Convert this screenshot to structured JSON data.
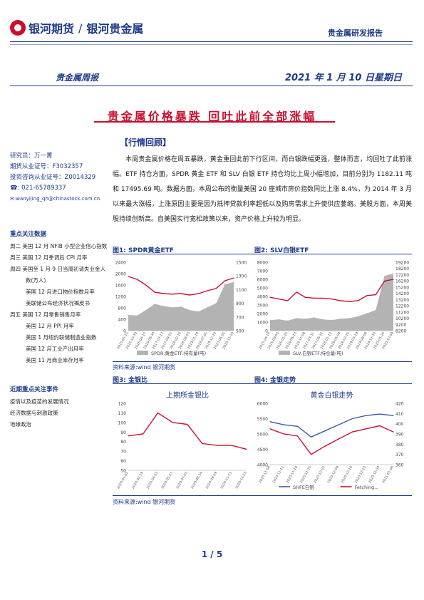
{
  "header": {
    "brand_cn": "银河期货",
    "sub_brand": "银河贵金属",
    "report_type": "贵金属研发报告",
    "weekly_label": "贵金属周报",
    "date": "2021 年 1 月 10 日星期日"
  },
  "title": "贵金属价格暴跌  回吐此前全部涨幅",
  "section_heading": "【行情回顾】",
  "analyst": {
    "researcher": "研究员：万一菁",
    "futures_license": "期货从业证号：F3032357",
    "consult_license": "投资咨询从业证号：Z0014329",
    "phone": "☎: 021-65789337",
    "email": "✉:wanyijing_qh@chinastock.com.cn"
  },
  "focus_data": {
    "title": "重点关注数据",
    "items": [
      "周二  美国 12 月 NFIB 小型企业信心指数",
      "周三  美国 12 月季调后 CPI 月率",
      "周四  美国至 1 月 9 日当周初请失业金人",
      "数(万人)",
      "美国 12 月进口物价指数月率",
      "美联储公布经济状况褐皮书",
      "周五  美国 12 月零售销售月率",
      "美国 12 月 PPI 月率",
      "美国 1 月纽约联储制造业指数",
      "美国 12 月工业产出月率",
      "美国 11 月商业库存月率"
    ]
  },
  "focus_events": {
    "title": "近期重点关注事件",
    "items": [
      "疫情以及疫苗的发展情况",
      "经济数据与刺激政策",
      "地缘政治"
    ]
  },
  "body_text": "本周贵金属价格在周五暴跌，黄金重回此前下行区间，而白银跌幅更强，整体而言，均回吐了此前涨幅。ETF 持仓方面，SPDR 黄金 ETF 和 SLV 白银 ETF 持仓均比上周小幅增加，目前分别为 1182.11 吨和 17495.69 吨。数据方面，本周公布的衡量美国 20 座城市房价指数同比上涨 8.4%，为 2014 年 3 月以来最大涨幅，上涨原因主要是因为抵押贷款利率超低以及购房需求上升使供应萎缩。美股方面，本周美股持续创新高。自美国实行宽松政策以来，资产价格上升较为明显。",
  "figures": {
    "fig1": {
      "caption": "图1: SPDR黄金ETF"
    },
    "fig2": {
      "caption": "图2: SLV白银ETF"
    },
    "fig3": {
      "caption": "图3: 金银比"
    },
    "fig4": {
      "caption": "图4: 金银走势"
    }
  },
  "source_note": "资料来源:wind  银河期货",
  "page_number": "1 / 5",
  "chart_data": [
    {
      "type": "line",
      "id": "fig1",
      "title": "",
      "x": [
        "2015-05-15",
        "2015-10-30",
        "2016-04-15",
        "2016-09-30",
        "2017-03-17",
        "2017-09-01",
        "2018-02-16",
        "2018-08-03",
        "2019-01-18",
        "2019-07-05",
        "2019-12-20",
        "2020-06-05",
        "2020-11-20"
      ],
      "series": [
        {
          "name": "SPDR:黄金ETF:持有量(吨)",
          "kind": "area",
          "axis": "right",
          "color": "#b3b3b3",
          "values": [
            730,
            720,
            800,
            890,
            860,
            840,
            850,
            800,
            780,
            840,
            900,
            1180,
            1210
          ]
        },
        {
          "name": "",
          "kind": "line",
          "axis": "left",
          "color": "#c8102e",
          "values": [
            1900,
            1800,
            1600,
            1350,
            1300,
            1280,
            1300,
            1250,
            1300,
            1400,
            1480,
            1750,
            1850
          ]
        }
      ],
      "left_axis": {
        "ticks": [
          "2400",
          "2000",
          "1600",
          "1200",
          "800",
          "400",
          "0"
        ],
        "range": [
          0,
          2400
        ]
      },
      "right_axis": {
        "ticks": [
          "1500",
          "1300",
          "1100",
          "900",
          "700",
          "500"
        ],
        "range": [
          500,
          1500
        ]
      },
      "legend": [
        "SPDR:黄金ETF:持有量(吨)"
      ]
    },
    {
      "type": "line",
      "id": "fig2",
      "title": "",
      "x": [
        "2015-04-14",
        "2015-09-03",
        "2016-01-25",
        "2016-06-13",
        "2016-11-08",
        "2017-03-31",
        "2017-08-22",
        "2018-01-12",
        "2018-06-04",
        "2018-10-25",
        "2019-03-19",
        "2019-08-08",
        "2019-12-30",
        "2020-05-20",
        "2020-10-09"
      ],
      "series": [
        {
          "name": "SLV:白银ETF:持仓量(吨)",
          "kind": "area",
          "axis": "right",
          "color": "#b3b3b3",
          "values": [
            9900,
            10000,
            9800,
            10200,
            10100,
            10300,
            10000,
            9900,
            10100,
            10200,
            10500,
            11000,
            11500,
            17000,
            17400
          ]
        },
        {
          "name": "",
          "kind": "line",
          "axis": "left",
          "color": "#c8102e",
          "values": [
            3900,
            3700,
            3500,
            4500,
            3900,
            3800,
            3800,
            3700,
            3500,
            3400,
            3500,
            4100,
            4200,
            5800,
            6000
          ]
        }
      ],
      "left_axis": {
        "ticks": [
          "8000",
          "7000",
          "6000",
          "5000",
          "4000",
          "3000",
          "2000",
          "1000",
          "0"
        ],
        "range": [
          0,
          8000
        ]
      },
      "right_axis": {
        "ticks": [
          "19200",
          "18200",
          "17200",
          "16200",
          "15200",
          "14200",
          "13200",
          "12200",
          "11200",
          "10200",
          "9200",
          "8200"
        ],
        "range": [
          8200,
          19200
        ]
      },
      "legend": [
        "SLV:白银ETF:持仓量(吨)"
      ]
    },
    {
      "type": "line",
      "id": "fig3",
      "title": "上期所金银比",
      "x": [
        "2020-01-02",
        "2020-02-19",
        "2020-04-03",
        "2020-05-21",
        "2020-07-03",
        "2020-08-14",
        "2020-09-29",
        "2020-11-11",
        "2020-12-23"
      ],
      "series": [
        {
          "name": "",
          "kind": "line",
          "color": "#c8102e",
          "values": [
            86,
            88,
            110,
            100,
            98,
            78,
            76,
            76,
            72
          ]
        }
      ],
      "left_axis": {
        "ticks": [
          "120",
          "110",
          "100",
          "90",
          "80",
          "70",
          "60",
          "50"
        ],
        "range": [
          50,
          120
        ]
      }
    },
    {
      "type": "line",
      "id": "fig4",
      "title": "黄金白银走势",
      "x": [
        "2020-11-04",
        "2020-11-11",
        "2020-11-18",
        "2020-11-25",
        "2020-12-02",
        "2020-12-09",
        "2020-12-16",
        "2020-12-23",
        "2020-12-30",
        "2021-01-06"
      ],
      "series": [
        {
          "name": "SHFE白银",
          "kind": "line",
          "axis": "left",
          "color": "#3b5ba5",
          "values": [
            5400,
            5300,
            5250,
            4900,
            5100,
            5300,
            5500,
            5600,
            5650,
            5600
          ]
        },
        {
          "name": "Fetching...",
          "kind": "line",
          "axis": "right",
          "color": "#c8102e",
          "values": [
            395,
            390,
            388,
            370,
            378,
            385,
            392,
            395,
            398,
            392
          ]
        }
      ],
      "left_axis": {
        "ticks": [
          "6000",
          "5500",
          "5000",
          "4500",
          "4000"
        ],
        "range": [
          4000,
          6000
        ]
      },
      "right_axis": {
        "ticks": [
          "420",
          "410",
          "400",
          "390",
          "380",
          "370",
          "360"
        ],
        "range": [
          360,
          420
        ]
      },
      "legend": [
        "SHFE白银",
        "Fetching..."
      ]
    }
  ]
}
